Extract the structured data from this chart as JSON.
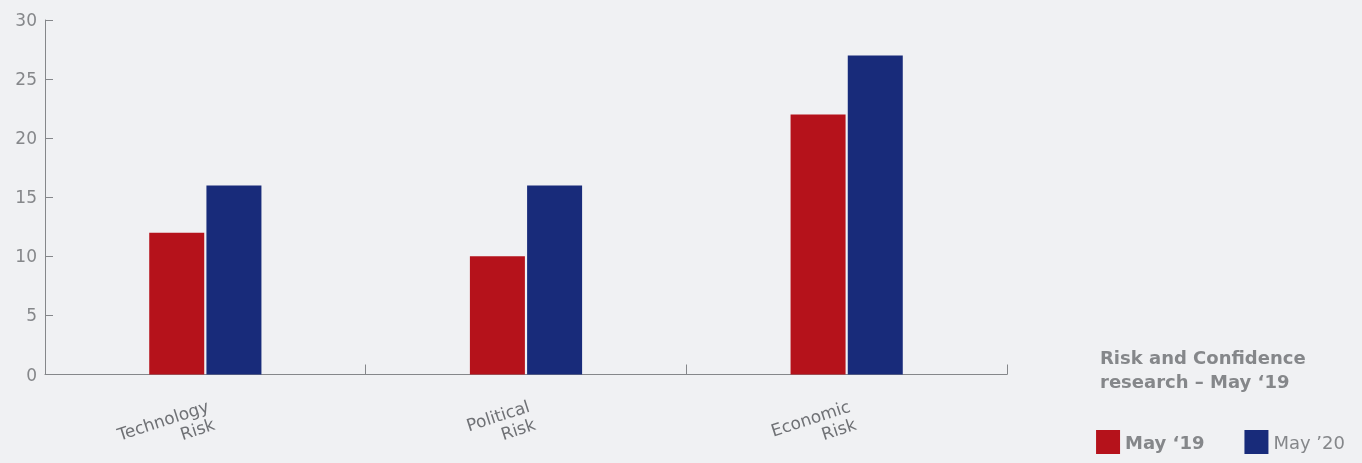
{
  "chart_data": {
    "type": "bar",
    "categories": [
      "Technology\nRisk",
      "Political\nRisk",
      "Economic\nRisk"
    ],
    "series": [
      {
        "name": "May ‘19",
        "color": "#b5121b",
        "values": [
          12,
          10,
          22
        ]
      },
      {
        "name": "May ’20",
        "color": "#182b7a",
        "values": [
          16,
          16,
          27
        ]
      }
    ],
    "ylim": [
      0,
      30
    ],
    "yticks": [
      0,
      5,
      10,
      15,
      20,
      25,
      30
    ],
    "grid": false,
    "legend": "bottom right",
    "annotations": [
      "Risk and Confidence research – May ‘19"
    ]
  }
}
